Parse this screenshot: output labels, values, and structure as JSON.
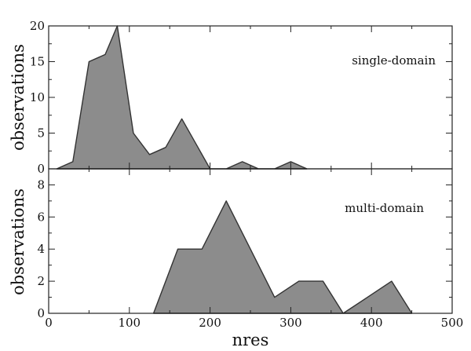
{
  "chart_data": {
    "type": "area",
    "xlabel": "nres",
    "x_ticks": [
      "0",
      "100",
      "200",
      "300",
      "400",
      "500"
    ],
    "xlim": [
      0,
      500
    ],
    "fill_color": "#8c8c8c",
    "line_color": "#333333",
    "grid": false,
    "panels": [
      {
        "label": "single-domain",
        "ylabel": "observations",
        "ylim": [
          0,
          20
        ],
        "y_ticks": [
          "0",
          "5",
          "10",
          "15",
          "20"
        ],
        "x": [
          10,
          30,
          50,
          70,
          85,
          105,
          125,
          145,
          165,
          185,
          200,
          220,
          240,
          260,
          280,
          300,
          320
        ],
        "values": [
          0,
          1,
          15,
          16,
          20,
          5,
          2,
          3,
          7,
          3,
          0,
          0,
          1,
          0,
          0,
          1,
          0
        ]
      },
      {
        "label": "multi-domain",
        "ylabel": "observations",
        "ylim": [
          0,
          9
        ],
        "y_ticks": [
          "0",
          "2",
          "4",
          "6",
          "8"
        ],
        "x": [
          130,
          160,
          190,
          220,
          250,
          280,
          310,
          340,
          365,
          395,
          425,
          450
        ],
        "values": [
          0,
          4,
          4,
          7,
          4,
          1,
          2,
          2,
          0,
          1,
          2,
          0
        ]
      }
    ]
  }
}
